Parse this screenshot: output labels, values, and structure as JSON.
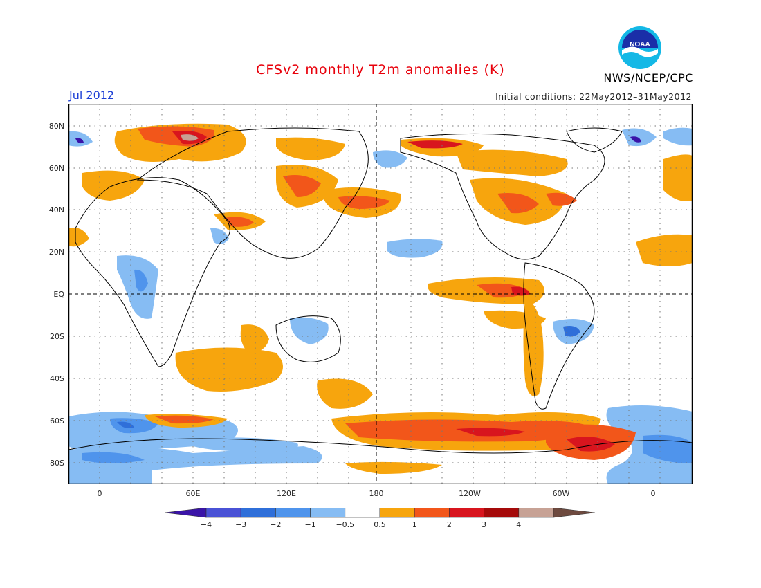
{
  "title": "CFSv2 monthly T2m anomalies (K)",
  "valid_month": "Jul 2012",
  "initial_conditions": "Initial conditions: 22May2012–31May2012",
  "agency": "NWS/NCEP/CPC",
  "logo_text": "NOAA",
  "axes": {
    "lat_labels": [
      "80N",
      "60N",
      "40N",
      "20N",
      "EQ",
      "20S",
      "40S",
      "60S",
      "80S"
    ],
    "lon_labels": [
      "0",
      "60E",
      "120E",
      "180",
      "120W",
      "60W",
      "0"
    ]
  },
  "colorbar": {
    "labels": [
      "−4",
      "−3",
      "−2",
      "−1",
      "−0.5",
      "0.5",
      "1",
      "2",
      "3",
      "4"
    ],
    "colors": [
      "#3a14a8",
      "#4a52d6",
      "#2f6fd9",
      "#4f94ec",
      "#86bcf3",
      "#ffffff",
      "#f7a50d",
      "#f2561a",
      "#d8151e",
      "#a50a0a",
      "#c7a295",
      "#6e4a3f"
    ]
  },
  "colors": {
    "title": "#e8000b",
    "date": "#1c3fd6",
    "land_outline": "#000000"
  }
}
